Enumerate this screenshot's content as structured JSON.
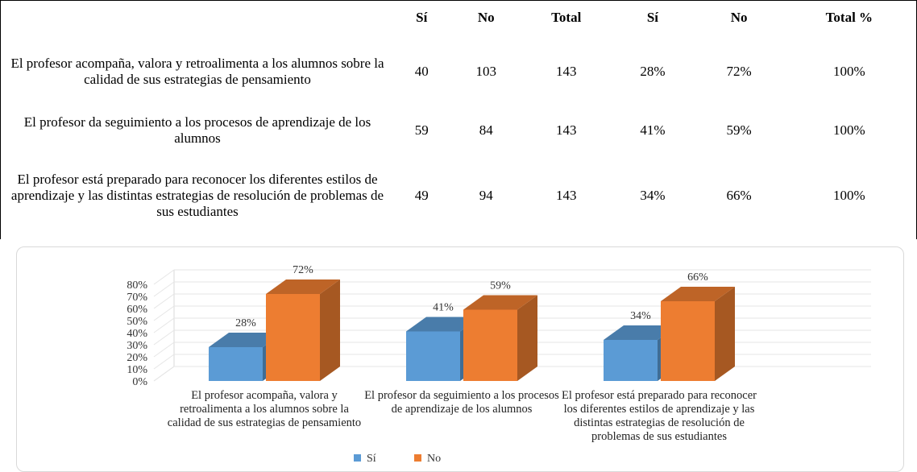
{
  "table": {
    "header": [
      "Sí",
      "No",
      "Total",
      "Sí",
      "No",
      "Total %"
    ],
    "rows": [
      [
        "El profesor acompaña, valora y retroalimenta a los alumnos sobre la calidad de sus estrategias de pensamiento",
        "40",
        "103",
        "143",
        "28%",
        "72%",
        "100%"
      ],
      [
        "El profesor da seguimiento a los procesos de aprendizaje de los alumnos",
        "59",
        "84",
        "143",
        "41%",
        "59%",
        "100%"
      ],
      [
        "El profesor está preparado para reconocer los diferentes estilos de aprendizaje y las distintas estrategias de resolución de problemas de sus estudiantes",
        "49",
        "94",
        "143",
        "34%",
        "66%",
        "100%"
      ]
    ]
  },
  "chart_data": {
    "type": "bar3d",
    "categories": [
      "El profesor acompaña, valora y retroalimenta a los alumnos sobre la calidad de sus estrategias de pensamiento",
      "El profesor da seguimiento a los procesos de aprendizaje de los alumnos",
      "El profesor está preparado para reconocer los diferentes estilos de aprendizaje y las distintas estrategias de resolución de problemas de sus estudiantes"
    ],
    "series": [
      {
        "name": "Sí",
        "color": "#5b9bd5",
        "values": [
          28,
          41,
          34
        ],
        "value_labels": [
          "28%",
          "41%",
          "34%"
        ]
      },
      {
        "name": "No",
        "color": "#ed7d31",
        "values": [
          72,
          59,
          66
        ],
        "value_labels": [
          "72%",
          "59%",
          "66%"
        ]
      }
    ],
    "ylim": [
      0,
      80
    ],
    "yticks": [
      {
        "value": 0,
        "label": "0%"
      },
      {
        "value": 10,
        "label": "10%"
      },
      {
        "value": 20,
        "label": "20%"
      },
      {
        "value": 30,
        "label": "30%"
      },
      {
        "value": 40,
        "label": "40%"
      },
      {
        "value": 50,
        "label": "50%"
      },
      {
        "value": 60,
        "label": "60%"
      },
      {
        "value": 70,
        "label": "70%"
      },
      {
        "value": 80,
        "label": "80%"
      }
    ],
    "grid": true,
    "legend": "bottom"
  }
}
